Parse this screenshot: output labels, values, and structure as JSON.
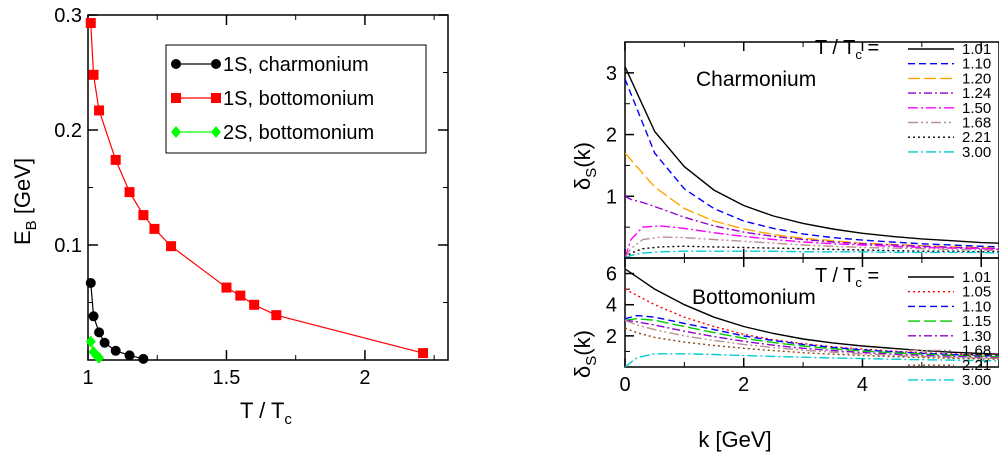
{
  "chart_data": [
    {
      "type": "line",
      "xlabel": "T / T",
      "xlabel_sub": "c",
      "ylabel": "E",
      "ylabel_sub": "B",
      "ylabel_unit": " [GeV]",
      "xlim": [
        1.0,
        2.3
      ],
      "ylim": [
        0.0,
        0.3
      ],
      "xticks": [
        1,
        1.5,
        2
      ],
      "xtick_labels": [
        "1",
        "1.5",
        "2"
      ],
      "yticks": [
        0.1,
        0.2,
        0.3
      ],
      "ytick_labels": [
        "0.1",
        "0.2",
        "0.3"
      ],
      "legend_position": "top-right",
      "series": [
        {
          "name": "1S, charmonium",
          "color": "#000000",
          "marker": "circle",
          "x": [
            1.01,
            1.02,
            1.04,
            1.06,
            1.1,
            1.15,
            1.2
          ],
          "y": [
            0.067,
            0.038,
            0.024,
            0.015,
            0.008,
            0.004,
            0.001
          ]
        },
        {
          "name": "1S, bottomonium",
          "color": "#ff0000",
          "marker": "square",
          "x": [
            1.01,
            1.02,
            1.04,
            1.1,
            1.15,
            1.2,
            1.24,
            1.3,
            1.5,
            1.55,
            1.6,
            1.68,
            2.21
          ],
          "y": [
            0.293,
            0.248,
            0.217,
            0.174,
            0.146,
            0.126,
            0.114,
            0.099,
            0.063,
            0.056,
            0.048,
            0.039,
            0.006
          ]
        },
        {
          "name": "2S, bottomonium",
          "color": "#00ff00",
          "marker": "diamond",
          "x": [
            1.01,
            1.02,
            1.03,
            1.04
          ],
          "y": [
            0.016,
            0.007,
            0.004,
            0.002
          ]
        }
      ]
    },
    {
      "type": "line",
      "title": "Charmonium",
      "ylabel": "δ",
      "ylabel_sub": "S",
      "ylabel_tail": "(k)",
      "xlim": [
        0,
        6.3
      ],
      "ylim": [
        0,
        3.5
      ],
      "yticks": [
        1,
        2,
        3
      ],
      "ytick_labels": [
        "1",
        "2",
        "3"
      ],
      "legend_title": "T / T",
      "legend_title_sub": "c",
      "legend_title_tail": " =",
      "legend_position": "top-right",
      "series": [
        {
          "name": "1.01",
          "color": "#000000",
          "dash": "",
          "x": [
            0,
            0.5,
            1,
            1.5,
            2,
            2.5,
            3,
            3.5,
            4,
            4.5,
            5,
            5.5,
            6,
            6.3
          ],
          "y": [
            3.1,
            2.05,
            1.48,
            1.1,
            0.85,
            0.68,
            0.56,
            0.47,
            0.4,
            0.35,
            0.31,
            0.28,
            0.25,
            0.24
          ]
        },
        {
          "name": "1.10",
          "color": "#0000ff",
          "dash": "7,4",
          "x": [
            0,
            0.5,
            1,
            1.5,
            2,
            2.5,
            3,
            3.5,
            4,
            4.5,
            5,
            5.5,
            6,
            6.3
          ],
          "y": [
            2.9,
            1.7,
            1.12,
            0.8,
            0.6,
            0.48,
            0.39,
            0.33,
            0.29,
            0.26,
            0.23,
            0.21,
            0.19,
            0.18
          ]
        },
        {
          "name": "1.20",
          "color": "#ffa500",
          "dash": "12,4",
          "x": [
            0,
            0.5,
            1,
            1.5,
            2,
            2.5,
            3,
            3.5,
            4,
            4.5,
            5,
            5.5,
            6,
            6.3
          ],
          "y": [
            1.7,
            1.15,
            0.8,
            0.6,
            0.47,
            0.38,
            0.32,
            0.28,
            0.24,
            0.22,
            0.2,
            0.18,
            0.17,
            0.16
          ]
        },
        {
          "name": "1.24",
          "color": "#9400d3",
          "dash": "8,3,2,3",
          "x": [
            0,
            0.1,
            0.3,
            0.6,
            1,
            1.5,
            2,
            2.5,
            3,
            3.5,
            4,
            4.5,
            5,
            5.5,
            6,
            6.3
          ],
          "y": [
            1.0,
            0.95,
            0.9,
            0.8,
            0.66,
            0.52,
            0.42,
            0.35,
            0.3,
            0.26,
            0.23,
            0.21,
            0.19,
            0.17,
            0.16,
            0.15
          ]
        },
        {
          "name": "1.50",
          "color": "#ff00ff",
          "dash": "10,3,2,3",
          "x": [
            0,
            0.1,
            0.3,
            0.6,
            1,
            1.5,
            2,
            2.5,
            3,
            3.5,
            4,
            4.5,
            5,
            5.5,
            6,
            6.3
          ],
          "y": [
            0,
            0.3,
            0.5,
            0.52,
            0.48,
            0.41,
            0.35,
            0.3,
            0.26,
            0.23,
            0.21,
            0.19,
            0.17,
            0.16,
            0.15,
            0.14
          ]
        },
        {
          "name": "1.68",
          "color": "#bc8f8f",
          "dash": "10,3,2,3,2,3",
          "x": [
            0,
            0.1,
            0.3,
            0.6,
            1,
            1.5,
            2,
            2.5,
            3,
            3.5,
            4,
            4.5,
            5,
            5.5,
            6,
            6.3
          ],
          "y": [
            0,
            0.15,
            0.3,
            0.34,
            0.33,
            0.3,
            0.27,
            0.24,
            0.21,
            0.19,
            0.17,
            0.16,
            0.15,
            0.14,
            0.13,
            0.12
          ]
        },
        {
          "name": "2.21",
          "color": "#000000",
          "dash": "2,3",
          "x": [
            0,
            0.1,
            0.3,
            0.6,
            1,
            1.5,
            2,
            2.5,
            3,
            3.5,
            4,
            4.5,
            5,
            5.5,
            6,
            6.3
          ],
          "y": [
            0,
            0.08,
            0.15,
            0.18,
            0.19,
            0.18,
            0.17,
            0.16,
            0.15,
            0.14,
            0.13,
            0.12,
            0.11,
            0.11,
            0.1,
            0.1
          ]
        },
        {
          "name": "3.00",
          "color": "#00ced1",
          "dash": "10,3,2,3",
          "x": [
            0,
            0.1,
            0.3,
            0.6,
            1,
            1.5,
            2,
            2.5,
            3,
            3.5,
            4,
            4.5,
            5,
            5.5,
            6,
            6.3
          ],
          "y": [
            0,
            0.04,
            0.08,
            0.1,
            0.11,
            0.11,
            0.11,
            0.11,
            0.1,
            0.1,
            0.1,
            0.09,
            0.09,
            0.09,
            0.09,
            0.08
          ]
        }
      ]
    },
    {
      "type": "line",
      "title": "Bottomonium",
      "xlabel": "k [GeV]",
      "ylabel": "δ",
      "ylabel_sub": "S",
      "ylabel_tail": "(k)",
      "xlim": [
        0,
        6.3
      ],
      "ylim": [
        0,
        7.0
      ],
      "xticks": [
        0,
        2,
        4
      ],
      "xtick_labels": [
        "0",
        "2",
        "4"
      ],
      "yticks": [
        2,
        4,
        6
      ],
      "ytick_labels": [
        "2",
        "4",
        "6"
      ],
      "legend_title": "T / T",
      "legend_title_sub": "c",
      "legend_title_tail": " =",
      "legend_position": "top-right",
      "series": [
        {
          "name": "1.01",
          "color": "#000000",
          "dash": "",
          "x": [
            0,
            0.5,
            1,
            1.5,
            2,
            2.5,
            3,
            3.5,
            4,
            4.5,
            5,
            5.5,
            6,
            6.3
          ],
          "y": [
            6.3,
            5.0,
            4.0,
            3.2,
            2.6,
            2.15,
            1.8,
            1.55,
            1.35,
            1.2,
            1.05,
            0.95,
            0.87,
            0.82
          ]
        },
        {
          "name": "1.05",
          "color": "#ff0000",
          "dash": "2,3",
          "x": [
            0,
            0.5,
            1,
            1.5,
            2,
            2.5,
            3,
            3.5,
            4,
            4.5,
            5,
            5.5,
            6,
            6.3
          ],
          "y": [
            5.0,
            4.0,
            3.2,
            2.6,
            2.1,
            1.75,
            1.5,
            1.3,
            1.15,
            1.02,
            0.92,
            0.84,
            0.77,
            0.73
          ]
        },
        {
          "name": "1.10",
          "color": "#0000ff",
          "dash": "7,4",
          "x": [
            0,
            0.2,
            0.5,
            1,
            1.5,
            2,
            2.5,
            3,
            3.5,
            4,
            4.5,
            5,
            5.5,
            6,
            6.3
          ],
          "y": [
            3.1,
            3.3,
            3.2,
            2.8,
            2.4,
            2.0,
            1.7,
            1.45,
            1.26,
            1.1,
            0.98,
            0.88,
            0.8,
            0.73,
            0.7
          ]
        },
        {
          "name": "1.15",
          "color": "#00cc00",
          "dash": "12,4",
          "x": [
            0,
            0.2,
            0.5,
            1,
            1.5,
            2,
            2.5,
            3,
            3.5,
            4,
            4.5,
            5,
            5.5,
            6,
            6.3
          ],
          "y": [
            3.0,
            3.1,
            3.0,
            2.6,
            2.2,
            1.85,
            1.57,
            1.35,
            1.17,
            1.03,
            0.92,
            0.83,
            0.75,
            0.69,
            0.66
          ]
        },
        {
          "name": "1.30",
          "color": "#9400d3",
          "dash": "8,3,2,3",
          "x": [
            0,
            0.2,
            0.5,
            1,
            1.5,
            2,
            2.5,
            3,
            3.5,
            4,
            4.5,
            5,
            5.5,
            6,
            6.3
          ],
          "y": [
            3.0,
            2.9,
            2.7,
            2.3,
            1.95,
            1.65,
            1.4,
            1.2,
            1.05,
            0.93,
            0.83,
            0.75,
            0.68,
            0.63,
            0.6
          ]
        },
        {
          "name": "1.68",
          "color": "#bc8f8f",
          "dash": "10,3,2,3,2,3",
          "x": [
            0,
            0.2,
            0.5,
            1,
            1.5,
            2,
            2.5,
            3,
            3.5,
            4,
            4.5,
            5,
            5.5,
            6,
            6.3
          ],
          "y": [
            3.0,
            2.7,
            2.4,
            2.0,
            1.7,
            1.45,
            1.25,
            1.08,
            0.95,
            0.84,
            0.75,
            0.68,
            0.62,
            0.57,
            0.55
          ]
        },
        {
          "name": "2.21",
          "color": "#8b4513",
          "dash": "2,3",
          "x": [
            0,
            0.2,
            0.5,
            1,
            1.5,
            2,
            2.5,
            3,
            3.5,
            4,
            4.5,
            5,
            5.5,
            6,
            6.3
          ],
          "y": [
            2.5,
            2.2,
            1.9,
            1.6,
            1.38,
            1.2,
            1.05,
            0.92,
            0.82,
            0.74,
            0.67,
            0.61,
            0.56,
            0.52,
            0.5
          ]
        },
        {
          "name": "3.00",
          "color": "#00ced1",
          "dash": "10,3,2,3",
          "x": [
            0,
            0.2,
            0.5,
            1,
            1.5,
            2,
            2.5,
            3,
            3.5,
            4,
            4.5,
            5,
            5.5,
            6,
            6.3
          ],
          "y": [
            0,
            0.6,
            0.85,
            0.85,
            0.8,
            0.74,
            0.68,
            0.63,
            0.58,
            0.54,
            0.5,
            0.47,
            0.44,
            0.41,
            0.4
          ]
        }
      ]
    }
  ]
}
